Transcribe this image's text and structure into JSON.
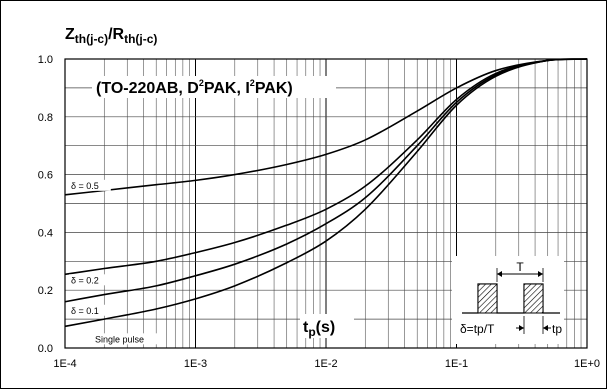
{
  "chart_data": {
    "type": "line",
    "title_main": "Z",
    "title_sub1": "th(j-c)",
    "title_slash": "/R",
    "title_sub2": "th(j-c)",
    "package_label": {
      "part1": "(TO-220AB, D",
      "sup1": "2",
      "part2": "PAK, I",
      "sup2": "2",
      "part3": "PAK)"
    },
    "x_label_main": "t",
    "x_label_sub": "p",
    "x_label_unit": "(s)",
    "x_scale": "log",
    "xlim": [
      0.0001,
      1
    ],
    "ylim": [
      0,
      1.0
    ],
    "x_tick_labels": [
      "1E-4",
      "1E-3",
      "1E-2",
      "1E-1",
      "1E+0"
    ],
    "y_tick_labels": [
      "0.0",
      "0.2",
      "0.4",
      "0.6",
      "0.8",
      "1.0"
    ],
    "grid": true,
    "series": [
      {
        "name": "δ = 0.5",
        "x": [
          0.0001,
          0.0002,
          0.0005,
          0.001,
          0.002,
          0.005,
          0.01,
          0.02,
          0.05,
          0.1,
          0.2,
          0.5,
          1
        ],
        "values": [
          0.53,
          0.545,
          0.565,
          0.58,
          0.6,
          0.635,
          0.67,
          0.72,
          0.82,
          0.9,
          0.96,
          0.995,
          1.0
        ]
      },
      {
        "name": "δ = 0.2",
        "x": [
          0.0001,
          0.0002,
          0.0005,
          0.001,
          0.002,
          0.005,
          0.01,
          0.02,
          0.05,
          0.1,
          0.2,
          0.5,
          1
        ],
        "values": [
          0.255,
          0.275,
          0.3,
          0.33,
          0.365,
          0.425,
          0.48,
          0.56,
          0.72,
          0.86,
          0.95,
          0.995,
          1.0
        ]
      },
      {
        "name": "δ = 0.1",
        "x": [
          0.0001,
          0.0002,
          0.0005,
          0.001,
          0.002,
          0.005,
          0.01,
          0.02,
          0.05,
          0.1,
          0.2,
          0.5,
          1
        ],
        "values": [
          0.16,
          0.185,
          0.215,
          0.25,
          0.29,
          0.36,
          0.43,
          0.52,
          0.7,
          0.85,
          0.945,
          0.995,
          1.0
        ]
      },
      {
        "name": "Single pulse",
        "x": [
          0.0001,
          0.0002,
          0.0005,
          0.001,
          0.002,
          0.005,
          0.01,
          0.02,
          0.05,
          0.1,
          0.2,
          0.5,
          1
        ],
        "values": [
          0.075,
          0.1,
          0.135,
          0.17,
          0.215,
          0.295,
          0.37,
          0.48,
          0.68,
          0.84,
          0.94,
          0.995,
          1.0
        ]
      }
    ],
    "inset": {
      "period_label": "T",
      "duty_label": "δ=tp/T",
      "pulse_label": "tp"
    }
  }
}
